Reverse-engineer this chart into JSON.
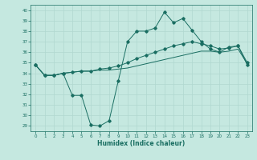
{
  "xlabel": "Humidex (Indice chaleur)",
  "xlim": [
    -0.5,
    23.5
  ],
  "ylim": [
    28.5,
    40.5
  ],
  "yticks": [
    29,
    30,
    31,
    32,
    33,
    34,
    35,
    36,
    37,
    38,
    39,
    40
  ],
  "xticks": [
    0,
    1,
    2,
    3,
    4,
    5,
    6,
    7,
    8,
    9,
    10,
    11,
    12,
    13,
    14,
    15,
    16,
    17,
    18,
    19,
    20,
    21,
    22,
    23
  ],
  "bg_color": "#c5e8e0",
  "grid_color": "#b0d8d0",
  "line_color": "#1a6e62",
  "line1_y": [
    34.8,
    33.8,
    33.8,
    34.0,
    31.9,
    31.9,
    29.1,
    29.0,
    29.5,
    33.3,
    37.0,
    38.0,
    38.0,
    38.3,
    39.8,
    38.8,
    39.2,
    38.1,
    37.0,
    36.3,
    36.0,
    36.5,
    36.6,
    34.8
  ],
  "line2_y": [
    34.8,
    33.8,
    33.8,
    34.0,
    34.1,
    34.2,
    34.2,
    34.4,
    34.5,
    34.7,
    35.0,
    35.4,
    35.7,
    36.0,
    36.3,
    36.6,
    36.8,
    37.0,
    36.8,
    36.6,
    36.3,
    36.4,
    36.6,
    35.0
  ],
  "line3_y": [
    34.8,
    33.8,
    33.8,
    34.0,
    34.1,
    34.2,
    34.2,
    34.3,
    34.3,
    34.4,
    34.5,
    34.7,
    34.9,
    35.1,
    35.3,
    35.5,
    35.7,
    35.9,
    36.1,
    36.1,
    36.0,
    36.1,
    36.3,
    34.9
  ]
}
